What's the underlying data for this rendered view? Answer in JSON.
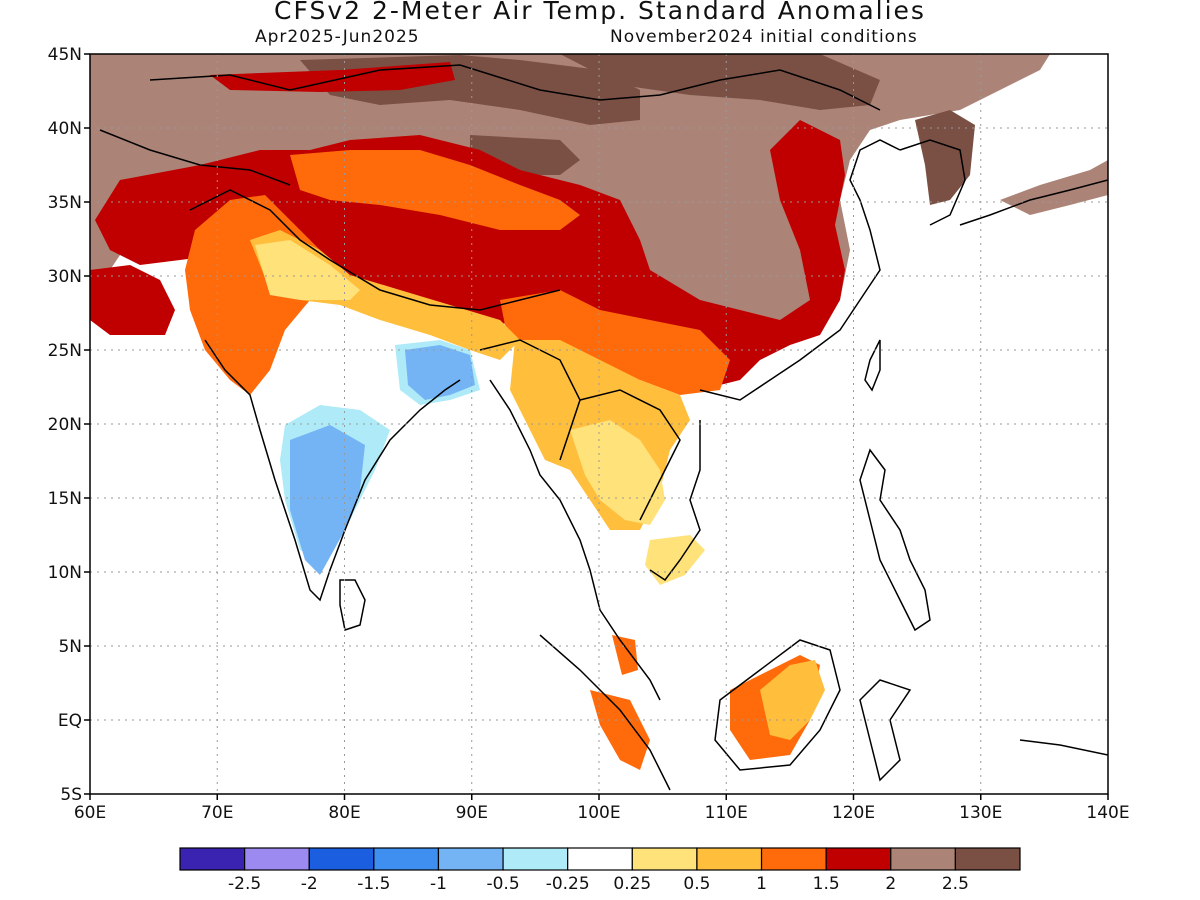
{
  "title": "CFSv2 2-Meter Air Temp. Standard Anomalies",
  "subtitle_left": "Apr2025-Jun2025",
  "subtitle_right": "November2024 initial conditions",
  "map": {
    "lon_range": [
      60,
      140
    ],
    "lat_range": [
      -5,
      45
    ],
    "lon_ticks": [
      "60E",
      "70E",
      "80E",
      "90E",
      "100E",
      "110E",
      "120E",
      "130E",
      "140E"
    ],
    "lat_ticks": [
      "45N",
      "40N",
      "35N",
      "30N",
      "25N",
      "20N",
      "15N",
      "10N",
      "5N",
      "EQ",
      "5S"
    ],
    "grid": "dotted"
  },
  "legend": {
    "colors": [
      "#3a23b0",
      "#9c8af0",
      "#1c5ee0",
      "#3f8ff0",
      "#74b4f5",
      "#aeeaf7",
      "#ffffff",
      "#ffe27a",
      "#ffbe3c",
      "#ff6a0a",
      "#c00000",
      "#ac8377",
      "#7a5044"
    ],
    "labels": [
      "-2.5",
      "-2",
      "-1.5",
      "-1",
      "-0.5",
      "-0.25",
      "0.25",
      "0.5",
      "1",
      "1.5",
      "2",
      "2.5"
    ]
  }
}
